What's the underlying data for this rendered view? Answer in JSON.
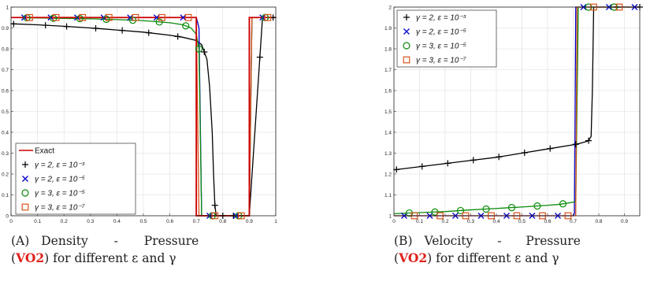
{
  "colors": {
    "black": "#000000",
    "blue": "#0000cc",
    "green": "#0a8a0a",
    "orange": "#d9541a",
    "red": "#cc0000"
  },
  "chart_data": [
    {
      "type": "line",
      "caption": {
        "label": "(A)",
        "text1": "Density - Pressure",
        "open": "(",
        "bold": "VO2",
        "text2": ") for different ε and γ"
      },
      "xlim": [
        0,
        1
      ],
      "ylim": [
        0,
        1
      ],
      "xticks": [
        "0",
        "0.1",
        "0.2",
        "0.3",
        "0.4",
        "0.5",
        "0.6",
        "0.7",
        "0.8",
        "0.9",
        "1"
      ],
      "yticks": [
        "0",
        "0.1",
        "0.2",
        "0.3",
        "0.4",
        "0.5",
        "0.6",
        "0.7",
        "0.8",
        "0.9",
        "1"
      ],
      "grid": true,
      "legend_position": "bottom-left",
      "series": [
        {
          "name": "Exact",
          "marker": "line",
          "color": "red",
          "x": [
            0,
            0.7,
            0.7,
            0.9,
            0.9,
            1
          ],
          "y": [
            0.95,
            0.95,
            0,
            0,
            0.95,
            0.95
          ]
        },
        {
          "name": "γ = 2, ε = 10⁻³",
          "marker": "plus",
          "color": "black",
          "x": [
            0,
            0.1,
            0.2,
            0.3,
            0.4,
            0.5,
            0.6,
            0.65,
            0.7,
            0.72,
            0.74,
            0.75,
            0.76,
            0.765,
            0.77,
            0.775,
            0.78,
            0.8,
            0.9,
            0.95,
            1
          ],
          "y": [
            0.92,
            0.915,
            0.908,
            0.9,
            0.89,
            0.88,
            0.865,
            0.855,
            0.84,
            0.82,
            0.75,
            0.62,
            0.4,
            0.2,
            0.05,
            0,
            0,
            0,
            0,
            0.95,
            0.95
          ],
          "marker_x": [
            0.01,
            0.13,
            0.21,
            0.32,
            0.42,
            0.52,
            0.63,
            0.73,
            0.77,
            0.8,
            0.84,
            0.94,
            0.99
          ]
        },
        {
          "name": "γ = 2, ε = 10⁻⁵",
          "marker": "x",
          "color": "blue",
          "x": [
            0,
            0.7,
            0.71,
            0.72,
            0.9,
            0.91,
            1
          ],
          "y": [
            0.95,
            0.95,
            0.9,
            0,
            0,
            0.95,
            0.95
          ],
          "marker_x": [
            0.05,
            0.15,
            0.25,
            0.35,
            0.45,
            0.55,
            0.65,
            0.75,
            0.85,
            0.95
          ]
        },
        {
          "name": "γ = 3, ε = 10⁻⁵",
          "marker": "circle",
          "color": "green",
          "x": [
            0,
            0.1,
            0.2,
            0.3,
            0.4,
            0.5,
            0.6,
            0.65,
            0.68,
            0.7,
            0.71,
            0.715,
            0.72,
            0.9,
            0.91,
            1
          ],
          "y": [
            0.95,
            0.948,
            0.946,
            0.944,
            0.94,
            0.935,
            0.925,
            0.915,
            0.9,
            0.87,
            0.8,
            0.4,
            0,
            0,
            0.95,
            0.95
          ],
          "marker_x": [
            0.06,
            0.16,
            0.26,
            0.36,
            0.46,
            0.56,
            0.66,
            0.71,
            0.76,
            0.86,
            0.96
          ]
        },
        {
          "name": "γ = 3, ε = 10⁻⁷",
          "marker": "square",
          "color": "orange",
          "x": [
            0,
            0.7,
            0.71,
            0.9,
            0.91,
            1
          ],
          "y": [
            0.95,
            0.95,
            0,
            0,
            0.95,
            0.95
          ],
          "marker_x": [
            0.07,
            0.17,
            0.27,
            0.37,
            0.47,
            0.57,
            0.67,
            0.77,
            0.87,
            0.97
          ]
        }
      ]
    },
    {
      "type": "line",
      "caption": {
        "label": "(B)",
        "text1": "Velocity - Pressure",
        "open": "(",
        "bold": "VO2",
        "text2": ") for different ε and γ"
      },
      "xlim": [
        0,
        0.96
      ],
      "ylim": [
        1,
        2
      ],
      "xticks": [
        "0",
        "0.1",
        "0.2",
        "0.3",
        "0.4",
        "0.5",
        "0.6",
        "0.7",
        "0.8",
        "0.9"
      ],
      "yticks": [
        "1",
        "1.1",
        "1.2",
        "1.3",
        "1.4",
        "1.5",
        "1.6",
        "1.7",
        "1.8",
        "1.9",
        "2"
      ],
      "grid": true,
      "legend_position": "top-left",
      "series": [
        {
          "name": "γ = 2, ε = 10⁻³",
          "marker": "plus",
          "color": "black",
          "x": [
            0,
            0.1,
            0.2,
            0.3,
            0.4,
            0.5,
            0.6,
            0.7,
            0.72,
            0.75,
            0.76,
            0.77,
            0.775,
            0.78,
            0.8,
            0.96
          ],
          "y": [
            1.22,
            1.235,
            1.25,
            1.265,
            1.28,
            1.3,
            1.32,
            1.34,
            1.345,
            1.355,
            1.36,
            1.38,
            1.6,
            2,
            2,
            2
          ],
          "marker_x": [
            0.01,
            0.11,
            0.21,
            0.31,
            0.41,
            0.51,
            0.61,
            0.71,
            0.76,
            0.87,
            0.96
          ]
        },
        {
          "name": "γ = 2, ε = 10⁻⁵",
          "marker": "x",
          "color": "blue",
          "x": [
            0,
            0.7,
            0.705,
            0.71,
            0.96
          ],
          "y": [
            1,
            1,
            1.01,
            2,
            2
          ],
          "marker_x": [
            0.04,
            0.14,
            0.24,
            0.34,
            0.44,
            0.54,
            0.64,
            0.74,
            0.84,
            0.94
          ]
        },
        {
          "name": "γ = 3, ε = 10⁻⁵",
          "marker": "circle",
          "color": "green",
          "x": [
            0,
            0.1,
            0.2,
            0.3,
            0.4,
            0.5,
            0.6,
            0.65,
            0.7,
            0.71,
            0.72,
            0.96
          ],
          "y": [
            1.01,
            1.015,
            1.02,
            1.028,
            1.035,
            1.042,
            1.05,
            1.055,
            1.065,
            1.07,
            2,
            2
          ],
          "marker_x": [
            0.06,
            0.16,
            0.26,
            0.36,
            0.46,
            0.56,
            0.66,
            0.76,
            0.86
          ]
        },
        {
          "name": "γ = 3, ε = 10⁻⁷",
          "marker": "square",
          "color": "orange",
          "x": [
            0,
            0.705,
            0.71,
            0.715,
            0.96
          ],
          "y": [
            1,
            1,
            1.001,
            2,
            2
          ],
          "marker_x": [
            0.08,
            0.18,
            0.28,
            0.38,
            0.48,
            0.58,
            0.68,
            0.78,
            0.88
          ]
        }
      ]
    }
  ]
}
